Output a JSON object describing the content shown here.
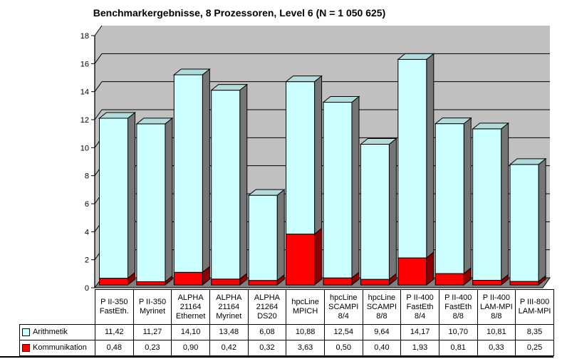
{
  "page": {
    "background": "#FFFFFF"
  },
  "chart_data": {
    "type": "bar",
    "subtype": "3d-stacked-column-with-data-table",
    "title": "Benchmarkergebnisse, 8 Prozessoren, Level 6 (N = 1 050 625)",
    "categories": [
      "P II-350 FastEth.",
      "P II-350 Myrinet",
      "ALPHA 21164 Ethernet",
      "ALPHA 21164 Myrinet",
      "ALPHA 21264 DS20",
      "hpcLine MPICH",
      "hpcLine SCAMPI 8/4",
      "hpcLine SCAMPI 8/8",
      "P II-400 FastEth 8/4",
      "P II-400 FastEth 8/8",
      "P II-400 LAM-MPI 8/8",
      "P III-800 LAM-MPI"
    ],
    "category_lines": [
      [
        "P II-350",
        "FastEth."
      ],
      [
        "P II-350",
        "Myrinet"
      ],
      [
        "ALPHA",
        "21164",
        "Ethernet"
      ],
      [
        "ALPHA",
        "21164",
        "Myrinet"
      ],
      [
        "ALPHA",
        "21264",
        "DS20"
      ],
      [
        "hpcLine",
        "MPICH"
      ],
      [
        "hpcLine",
        "SCAMPI",
        "8/4"
      ],
      [
        "hpcLine",
        "SCAMPI",
        "8/8"
      ],
      [
        "P II-400",
        "FastEth",
        "8/4"
      ],
      [
        "P II-400",
        "FastEth",
        "8/8"
      ],
      [
        "P II-400",
        "LAM-MPI",
        "8/8"
      ],
      [
        "P III-800",
        "LAM-MPI"
      ]
    ],
    "series": [
      {
        "name": "Arithmetik",
        "color": "#CCFFFF",
        "top_color": "#B2DCDC",
        "side_color": "#757575",
        "values": [
          11.42,
          11.27,
          14.1,
          13.48,
          6.08,
          10.88,
          12.54,
          9.64,
          14.17,
          10.7,
          10.81,
          8.35
        ]
      },
      {
        "name": "Kommunikation",
        "color": "#FF0000",
        "top_color": "#CC0000",
        "side_color": "#8B0000",
        "values": [
          0.48,
          0.23,
          0.9,
          0.42,
          0.32,
          3.63,
          0.5,
          0.4,
          1.93,
          0.81,
          0.33,
          0.25
        ]
      }
    ],
    "stack_order_bottom_to_top": [
      "Kommunikation",
      "Arithmetik"
    ],
    "y_axis": {
      "min": 0,
      "max": 18,
      "step": 2,
      "tick_labels": [
        "0",
        "2",
        "4",
        "6",
        "8",
        "10",
        "12",
        "14",
        "16",
        "18"
      ]
    },
    "grid": true,
    "legend_position": "left-of-data-table",
    "number_format": "comma-decimal-2-places",
    "colors": {
      "back_wall": "#C0C0C0",
      "floor": "#808080",
      "outline": "#000000",
      "text": "#000000",
      "table_background": "#FFFFFF"
    }
  }
}
